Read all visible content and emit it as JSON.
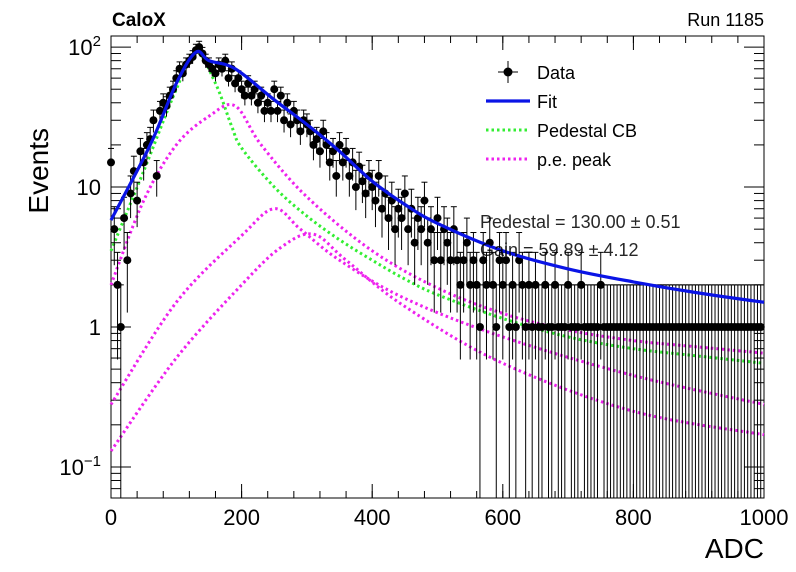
{
  "header": {
    "experiment": "CaloX",
    "run_label": "Run 1185"
  },
  "colors": {
    "fit": "#0a14e6",
    "pedestal": "#33ee33",
    "pe_peak": "#ee22ee",
    "data": "#000000"
  },
  "chart_data": {
    "type": "scatter",
    "xlabel": "ADC",
    "ylabel": "Events",
    "xlim": [
      0,
      1000
    ],
    "ylim": [
      0.06,
      120
    ],
    "yscale": "log",
    "x_ticks": [
      {
        "value": 0,
        "label": "0"
      },
      {
        "value": 200,
        "label": "200"
      },
      {
        "value": 400,
        "label": "400"
      },
      {
        "value": 600,
        "label": "600"
      },
      {
        "value": 800,
        "label": "800"
      },
      {
        "value": 1000,
        "label": "1000"
      }
    ],
    "y_ticks": [
      {
        "value": 0.1,
        "base": "10",
        "exp": "−1"
      },
      {
        "value": 1,
        "base": "1",
        "exp": ""
      },
      {
        "value": 10,
        "base": "10",
        "exp": ""
      },
      {
        "value": 100,
        "base": "10",
        "exp": "2"
      }
    ],
    "legend": {
      "placement": "top-right",
      "entries": [
        {
          "label": "Data",
          "kind": "marker",
          "color": "#000000"
        },
        {
          "label": "Fit",
          "kind": "line",
          "color": "#0a14e6"
        },
        {
          "label": "Pedestal CB",
          "kind": "dotted",
          "color": "#33ee33"
        },
        {
          "label": "p.e. peak",
          "kind": "dotted",
          "color": "#ee22ee"
        }
      ]
    },
    "annotations": [
      "Pedestal = 130.00 ± 0.51",
      "Gain = 59.89 ± 4.12"
    ],
    "series": [
      {
        "name": "Data",
        "kind": "points",
        "points": [
          [
            0,
            15
          ],
          [
            5,
            5
          ],
          [
            10,
            2
          ],
          [
            15,
            1
          ],
          [
            20,
            6
          ],
          [
            25,
            3
          ],
          [
            30,
            9
          ],
          [
            35,
            13
          ],
          [
            40,
            8
          ],
          [
            45,
            18
          ],
          [
            50,
            15
          ],
          [
            55,
            20
          ],
          [
            60,
            22
          ],
          [
            65,
            30
          ],
          [
            70,
            12
          ],
          [
            75,
            35
          ],
          [
            80,
            40
          ],
          [
            85,
            38
          ],
          [
            90,
            45
          ],
          [
            95,
            50
          ],
          [
            100,
            60
          ],
          [
            105,
            70
          ],
          [
            110,
            65
          ],
          [
            115,
            75
          ],
          [
            120,
            80
          ],
          [
            125,
            85
          ],
          [
            130,
            95
          ],
          [
            135,
            100
          ],
          [
            140,
            90
          ],
          [
            145,
            80
          ],
          [
            150,
            75
          ],
          [
            155,
            70
          ],
          [
            160,
            65
          ],
          [
            165,
            75
          ],
          [
            170,
            70
          ],
          [
            175,
            80
          ],
          [
            180,
            60
          ],
          [
            185,
            70
          ],
          [
            190,
            55
          ],
          [
            195,
            60
          ],
          [
            200,
            50
          ],
          [
            205,
            45
          ],
          [
            210,
            55
          ],
          [
            215,
            45
          ],
          [
            220,
            50
          ],
          [
            225,
            40
          ],
          [
            230,
            45
          ],
          [
            235,
            35
          ],
          [
            240,
            40
          ],
          [
            245,
            35
          ],
          [
            250,
            50
          ],
          [
            255,
            35
          ],
          [
            260,
            45
          ],
          [
            265,
            30
          ],
          [
            270,
            40
          ],
          [
            275,
            28
          ],
          [
            280,
            35
          ],
          [
            285,
            30
          ],
          [
            290,
            25
          ],
          [
            295,
            30
          ],
          [
            300,
            28
          ],
          [
            305,
            25
          ],
          [
            310,
            20
          ],
          [
            315,
            22
          ],
          [
            320,
            18
          ],
          [
            325,
            25
          ],
          [
            330,
            20
          ],
          [
            335,
            15
          ],
          [
            340,
            18
          ],
          [
            345,
            12
          ],
          [
            350,
            20
          ],
          [
            355,
            15
          ],
          [
            360,
            18
          ],
          [
            365,
            12
          ],
          [
            370,
            15
          ],
          [
            375,
            10
          ],
          [
            380,
            14
          ],
          [
            385,
            11
          ],
          [
            390,
            9
          ],
          [
            395,
            12
          ],
          [
            400,
            10
          ],
          [
            405,
            8
          ],
          [
            410,
            12
          ],
          [
            415,
            7
          ],
          [
            420,
            9
          ],
          [
            425,
            6
          ],
          [
            430,
            8
          ],
          [
            435,
            5
          ],
          [
            440,
            7
          ],
          [
            445,
            6
          ],
          [
            450,
            9
          ],
          [
            455,
            5
          ],
          [
            460,
            7
          ],
          [
            465,
            4
          ],
          [
            470,
            6
          ],
          [
            475,
            5
          ],
          [
            480,
            8
          ],
          [
            485,
            4
          ],
          [
            490,
            5
          ],
          [
            495,
            3
          ],
          [
            500,
            6
          ],
          [
            505,
            3
          ],
          [
            510,
            5
          ],
          [
            515,
            4
          ],
          [
            520,
            3
          ],
          [
            525,
            5
          ],
          [
            530,
            3
          ],
          [
            535,
            2
          ],
          [
            540,
            3
          ],
          [
            545,
            4
          ],
          [
            550,
            2
          ],
          [
            555,
            3
          ],
          [
            560,
            2
          ],
          [
            565,
            1
          ],
          [
            570,
            3
          ],
          [
            575,
            2
          ],
          [
            580,
            4
          ],
          [
            585,
            2
          ],
          [
            590,
            1
          ],
          [
            595,
            3
          ],
          [
            600,
            2
          ],
          [
            605,
            3
          ],
          [
            610,
            1
          ],
          [
            615,
            2
          ],
          [
            620,
            1
          ],
          [
            625,
            3
          ],
          [
            630,
            2
          ],
          [
            635,
            1
          ],
          [
            640,
            2
          ],
          [
            645,
            1
          ],
          [
            650,
            2
          ],
          [
            655,
            1
          ],
          [
            660,
            1
          ],
          [
            665,
            2
          ],
          [
            670,
            1
          ],
          [
            675,
            1
          ],
          [
            680,
            2
          ],
          [
            685,
            1
          ],
          [
            690,
            1
          ],
          [
            695,
            1
          ],
          [
            700,
            2
          ],
          [
            705,
            1
          ],
          [
            710,
            1
          ],
          [
            715,
            1
          ],
          [
            720,
            2
          ],
          [
            725,
            1
          ],
          [
            730,
            1
          ],
          [
            735,
            1
          ],
          [
            740,
            1
          ],
          [
            745,
            1
          ],
          [
            750,
            2
          ],
          [
            755,
            1
          ],
          [
            760,
            1
          ],
          [
            765,
            1
          ],
          [
            770,
            1
          ],
          [
            775,
            1
          ],
          [
            780,
            1
          ],
          [
            785,
            1
          ],
          [
            790,
            1
          ],
          [
            795,
            1
          ],
          [
            800,
            1
          ],
          [
            805,
            1
          ],
          [
            810,
            1
          ],
          [
            815,
            1
          ],
          [
            820,
            1
          ],
          [
            825,
            1
          ],
          [
            830,
            1
          ],
          [
            835,
            1
          ],
          [
            840,
            1
          ],
          [
            845,
            1
          ],
          [
            850,
            1
          ],
          [
            855,
            1
          ],
          [
            860,
            1
          ],
          [
            865,
            1
          ],
          [
            870,
            1
          ],
          [
            875,
            1
          ],
          [
            880,
            1
          ],
          [
            885,
            1
          ],
          [
            890,
            1
          ],
          [
            895,
            1
          ],
          [
            900,
            1
          ],
          [
            905,
            1
          ],
          [
            910,
            1
          ],
          [
            915,
            1
          ],
          [
            920,
            1
          ],
          [
            925,
            1
          ],
          [
            930,
            1
          ],
          [
            935,
            1
          ],
          [
            940,
            1
          ],
          [
            945,
            1
          ],
          [
            950,
            1
          ],
          [
            955,
            1
          ],
          [
            960,
            1
          ],
          [
            965,
            1
          ],
          [
            970,
            1
          ],
          [
            975,
            1
          ],
          [
            980,
            1
          ],
          [
            985,
            1
          ],
          [
            990,
            1
          ],
          [
            995,
            1
          ]
        ]
      },
      {
        "name": "Fit",
        "kind": "line",
        "points": [
          [
            0,
            5.8
          ],
          [
            60,
            20
          ],
          [
            100,
            55
          ],
          [
            130,
            92
          ],
          [
            150,
            80
          ],
          [
            190,
            70
          ],
          [
            250,
            42
          ],
          [
            300,
            28
          ],
          [
            350,
            18
          ],
          [
            400,
            11
          ],
          [
            450,
            7.5
          ],
          [
            500,
            5.5
          ],
          [
            600,
            3.5
          ],
          [
            700,
            2.6
          ],
          [
            800,
            2.1
          ],
          [
            900,
            1.75
          ],
          [
            1000,
            1.5
          ]
        ]
      },
      {
        "name": "Pedestal CB",
        "kind": "dotted",
        "points": [
          [
            0,
            3.5
          ],
          [
            50,
            13
          ],
          [
            100,
            50
          ],
          [
            130,
            92
          ],
          [
            160,
            55
          ],
          [
            185,
            27
          ],
          [
            200,
            19
          ],
          [
            250,
            10
          ],
          [
            300,
            6.2
          ],
          [
            350,
            4.2
          ],
          [
            400,
            3
          ],
          [
            450,
            2.2
          ],
          [
            500,
            1.7
          ],
          [
            600,
            1.15
          ],
          [
            700,
            0.85
          ],
          [
            800,
            0.7
          ],
          [
            900,
            0.62
          ],
          [
            1000,
            0.55
          ]
        ]
      },
      {
        "name": "p.e. peak",
        "kind": "dotted",
        "points": [
          [
            0,
            2
          ],
          [
            50,
            8
          ],
          [
            100,
            20
          ],
          [
            150,
            32
          ],
          [
            190,
            38
          ],
          [
            230,
            20
          ],
          [
            300,
            8.5
          ],
          [
            400,
            3.5
          ],
          [
            500,
            1.9
          ],
          [
            600,
            1.25
          ],
          [
            700,
            0.95
          ],
          [
            800,
            0.8
          ],
          [
            900,
            0.72
          ],
          [
            1000,
            0.65
          ]
        ]
      },
      {
        "name": "p.e. peak 2",
        "kind": "dotted",
        "points": [
          [
            0,
            0.28
          ],
          [
            100,
            1.5
          ],
          [
            200,
            4.5
          ],
          [
            250,
            7
          ],
          [
            290,
            5
          ],
          [
            350,
            3
          ],
          [
            450,
            1.6
          ],
          [
            600,
            0.85
          ],
          [
            800,
            0.45
          ],
          [
            1000,
            0.28
          ]
        ]
      },
      {
        "name": "p.e. peak 3",
        "kind": "dotted",
        "points": [
          [
            0,
            0.13
          ],
          [
            100,
            0.6
          ],
          [
            200,
            2
          ],
          [
            260,
            3.7
          ],
          [
            310,
            4.6
          ],
          [
            360,
            3
          ],
          [
            450,
            1.4
          ],
          [
            600,
            0.55
          ],
          [
            800,
            0.25
          ],
          [
            1000,
            0.17
          ]
        ]
      }
    ]
  }
}
